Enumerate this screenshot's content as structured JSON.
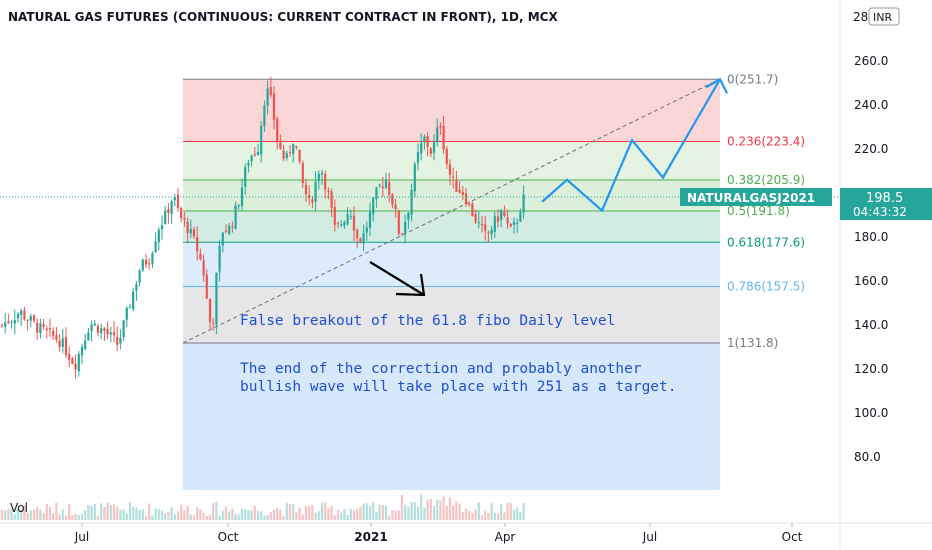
{
  "chart_data": {
    "type": "candlestick",
    "title": "NATURAL GAS FUTURES (CONTINUOUS: CURRENT CONTRACT IN FRONT), 1D, MCX",
    "symbol": "NATURALGASJ2021",
    "currency_badge": "INR",
    "last_price": "198.5",
    "countdown": "04:43:32",
    "volume_label": "Vol",
    "y_axis": {
      "ticks": [
        "260.0",
        "240.0",
        "220.0",
        "200.0",
        "180.0",
        "160.0",
        "140.0",
        "120.0",
        "100.0",
        "80.0"
      ],
      "tick_values": [
        260,
        240,
        220,
        200,
        180,
        160,
        140,
        120,
        100,
        80
      ],
      "top_tick_partial": "28",
      "range": [
        65,
        282
      ]
    },
    "x_axis": {
      "ticks": [
        "Jul",
        "Oct",
        "2021",
        "Apr",
        "Jul",
        "Oct"
      ]
    },
    "fibonacci": {
      "levels": [
        {
          "ratio": "0",
          "price": 251.7,
          "label": "0(251.7)",
          "color": "#787b86"
        },
        {
          "ratio": "0.236",
          "price": 223.4,
          "label": "0.236(223.4)",
          "color": "#f23645"
        },
        {
          "ratio": "0.382",
          "price": 205.9,
          "label": "0.382(205.9)",
          "color": "#4caf50"
        },
        {
          "ratio": "0.5",
          "price": 191.8,
          "label": "0.5(191.8)",
          "color": "#4caf50"
        },
        {
          "ratio": "0.618",
          "price": 177.6,
          "label": "0.618(177.6)",
          "color": "#089981"
        },
        {
          "ratio": "0.786",
          "price": 157.5,
          "label": "0.786(157.5)",
          "color": "#64b5f6"
        },
        {
          "ratio": "1",
          "price": 131.8,
          "label": "1(131.8)",
          "color": "#787b86"
        }
      ]
    },
    "annotations": [
      {
        "text": "False breakout of the 61.8 fibo Daily level"
      },
      {
        "text": "The end of the correction and probably another"
      },
      {
        "text": "bullish wave will take place with 251 as a target."
      }
    ],
    "projected_path_prices": [
      196,
      206,
      192,
      224,
      207,
      251.7
    ],
    "colors": {
      "up": "#26a69a",
      "down": "#ef5350",
      "tag": "#26a69a",
      "projection": "#2196f3",
      "annotation": "#1e50d6"
    }
  }
}
